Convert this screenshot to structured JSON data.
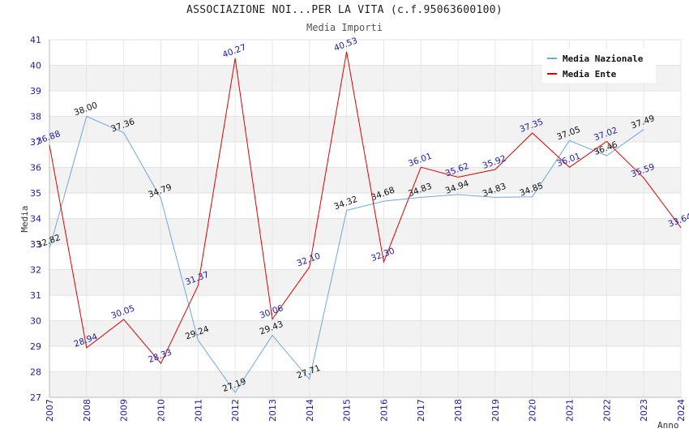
{
  "chart_data": {
    "type": "line",
    "title": "ASSOCIAZIONE NOI...PER LA VITA (c.f.95063600100)",
    "subtitle": "Media Importi",
    "xlabel": "Anno",
    "ylabel": "Media",
    "ylim": [
      27,
      41
    ],
    "yticks": [
      "27",
      "28",
      "29",
      "30",
      "31",
      "32",
      "33",
      "34",
      "35",
      "36",
      "37",
      "38",
      "39",
      "40",
      "41"
    ],
    "categories": [
      "2007",
      "2008",
      "2009",
      "2010",
      "2011",
      "2012",
      "2013",
      "2014",
      "2015",
      "2016",
      "2017",
      "2018",
      "2019",
      "2020",
      "2021",
      "2022",
      "2023",
      "2024"
    ],
    "legend_position": "top-right",
    "series": [
      {
        "name": "Media Nazionale",
        "color": "#6fa8e0",
        "values": [
          32.82,
          38.0,
          37.36,
          34.79,
          29.24,
          27.19,
          29.43,
          27.71,
          34.32,
          34.68,
          34.83,
          34.94,
          34.83,
          34.85,
          37.05,
          36.46,
          37.49,
          null
        ],
        "labels": [
          "32.82",
          "38.00",
          "37.36",
          "34.79",
          "29.24",
          "27.19",
          "29.43",
          "27.71",
          "34.32",
          "34.68",
          "34.83",
          "34.94",
          "34.83",
          "34.85",
          "37.05",
          "36.46",
          "37.49",
          ""
        ]
      },
      {
        "name": "Media Ente",
        "color": "#dd0000",
        "values": [
          36.88,
          28.94,
          30.05,
          28.33,
          31.37,
          40.27,
          30.06,
          32.1,
          40.53,
          32.3,
          36.01,
          35.62,
          35.92,
          37.35,
          36.01,
          37.02,
          35.59,
          33.64
        ],
        "labels": [
          "36.88",
          "28.94",
          "30.05",
          "28.33",
          "31.37",
          "40.27",
          "30.06",
          "32.10",
          "40.53",
          "32.30",
          "36.01",
          "35.62",
          "35.92",
          "37.35",
          "36.01",
          "37.02",
          "35.59",
          "33.64"
        ]
      }
    ]
  }
}
